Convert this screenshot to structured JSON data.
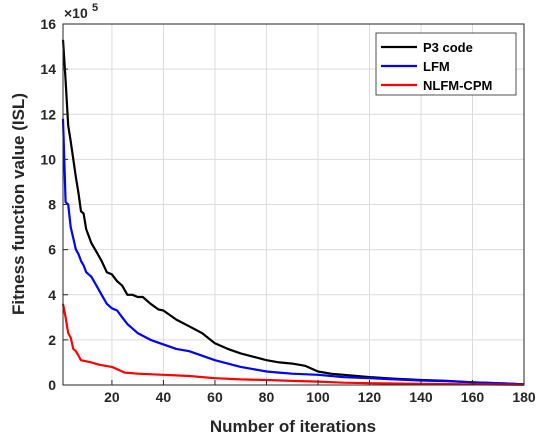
{
  "chart_data": {
    "type": "line",
    "xlabel": "Number of iterations",
    "ylabel": "Fitness function value (ISL)",
    "y_multiplier_label": "×10",
    "y_multiplier_exponent": "5",
    "xlim": [
      1,
      180
    ],
    "ylim": [
      0,
      16
    ],
    "y_scale_factor": 100000,
    "x_ticks": [
      20,
      40,
      60,
      80,
      100,
      120,
      140,
      160,
      180
    ],
    "y_ticks": [
      0,
      2,
      4,
      6,
      8,
      10,
      12,
      14,
      16
    ],
    "grid": true,
    "legend_position": "top-right",
    "series": [
      {
        "name": "P3 code",
        "color": "#000000",
        "x": [
          1,
          2,
          3,
          4,
          5,
          6,
          7,
          8,
          9,
          10,
          12,
          14,
          16,
          18,
          20,
          22,
          24,
          26,
          28,
          30,
          32,
          35,
          38,
          40,
          45,
          50,
          55,
          60,
          65,
          70,
          75,
          80,
          85,
          90,
          95,
          100,
          105,
          110,
          120,
          130,
          140,
          150,
          160,
          170,
          180
        ],
        "y": [
          15.3,
          13.5,
          11.5,
          10.8,
          10.0,
          9.2,
          8.5,
          7.7,
          7.6,
          6.9,
          6.3,
          5.9,
          5.5,
          5.0,
          4.9,
          4.6,
          4.4,
          4.0,
          4.0,
          3.9,
          3.9,
          3.6,
          3.35,
          3.3,
          2.9,
          2.6,
          2.3,
          1.85,
          1.6,
          1.4,
          1.25,
          1.1,
          1.0,
          0.95,
          0.85,
          0.6,
          0.5,
          0.45,
          0.35,
          0.28,
          0.22,
          0.18,
          0.12,
          0.08,
          0.03
        ]
      },
      {
        "name": "LFM",
        "color": "#0000ff",
        "x": [
          1,
          2,
          3,
          4,
          5,
          6,
          7,
          8,
          9,
          10,
          12,
          14,
          16,
          18,
          20,
          22,
          24,
          26,
          28,
          30,
          35,
          40,
          45,
          50,
          55,
          60,
          65,
          70,
          75,
          80,
          85,
          90,
          100,
          110,
          120,
          130,
          140,
          150,
          160,
          170,
          180
        ],
        "y": [
          11.8,
          8.1,
          8.0,
          7.0,
          6.5,
          6.0,
          5.8,
          5.5,
          5.3,
          5.0,
          4.8,
          4.4,
          4.0,
          3.6,
          3.4,
          3.3,
          3.0,
          2.7,
          2.5,
          2.3,
          2.0,
          1.8,
          1.6,
          1.5,
          1.3,
          1.1,
          0.95,
          0.8,
          0.7,
          0.6,
          0.55,
          0.5,
          0.45,
          0.35,
          0.3,
          0.25,
          0.2,
          0.17,
          0.12,
          0.08,
          0.03
        ]
      },
      {
        "name": "NLFM-CPM",
        "color": "#ff0000",
        "x": [
          1,
          2,
          3,
          4,
          5,
          6,
          7,
          8,
          10,
          12,
          15,
          20,
          25,
          30,
          40,
          50,
          60,
          70,
          80,
          90,
          100,
          110,
          120,
          140,
          160,
          180
        ],
        "y": [
          3.6,
          3.0,
          2.3,
          2.1,
          1.6,
          1.5,
          1.3,
          1.1,
          1.05,
          1.0,
          0.9,
          0.8,
          0.55,
          0.5,
          0.45,
          0.4,
          0.3,
          0.25,
          0.22,
          0.18,
          0.15,
          0.1,
          0.08,
          0.05,
          0.03,
          0.01
        ]
      }
    ]
  }
}
